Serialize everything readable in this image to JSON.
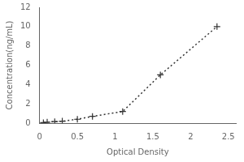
{
  "chart_data": {
    "type": "line",
    "x": [
      0.05,
      0.1,
      0.2,
      0.3,
      0.5,
      0.7,
      1.1,
      1.6,
      2.35
    ],
    "values": [
      0.05,
      0.1,
      0.15,
      0.2,
      0.4,
      0.7,
      1.2,
      5.0,
      10.0
    ],
    "xlabel": "Optical Density",
    "ylabel": "Concentration(ng/mL)",
    "xlim": [
      0,
      2.6
    ],
    "ylim": [
      0,
      12
    ],
    "xticks": [
      0,
      0.5,
      1,
      1.5,
      2,
      2.5
    ],
    "yticks": [
      0,
      2,
      4,
      6,
      8,
      10,
      12
    ],
    "color": "#333333",
    "marker": "plus",
    "line_style": "dotted",
    "grid": false
  }
}
